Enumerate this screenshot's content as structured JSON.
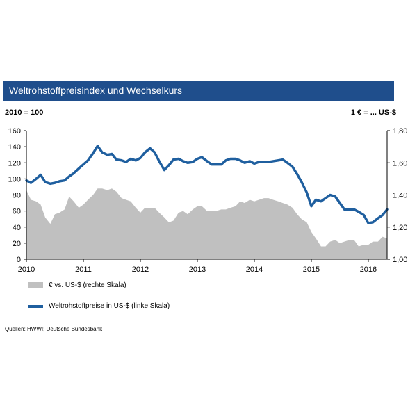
{
  "header": {
    "title": "Weltrohstoffpreisindex  und Wechselkurs",
    "left_unit": "2010 = 100",
    "right_unit": "1 € = ... US-$"
  },
  "legend": {
    "area_label": "€ vs. US-$ (rechte Skala)",
    "line_label": "Weltrohstoffpreise in US-$ (linke Skala)"
  },
  "source": "Quellen:  HWWI;  Deutsche  Bundesbank",
  "colors": {
    "title_bar": "#1f4e8c",
    "line": "#1f5f9f",
    "area": "#c0c0c0"
  },
  "chart_data": {
    "type": "line",
    "title": "Weltrohstoffpreisindex  und Wechselkurs",
    "x_ticks": [
      "2010",
      "2011",
      "2012",
      "2013",
      "2014",
      "2015",
      "2016"
    ],
    "y_left": {
      "label": "2010 = 100",
      "range": [
        0,
        160
      ],
      "ticks": [
        "0",
        "20",
        "40",
        "60",
        "80",
        "100",
        "120",
        "140",
        "160"
      ]
    },
    "y_right": {
      "label": "1 € = ... US-$",
      "range": [
        1.0,
        1.8
      ],
      "ticks": [
        "1,00",
        "1,20",
        "1,40",
        "1,60",
        "1,80"
      ]
    },
    "grid": false,
    "series": [
      {
        "name": "€ vs. US-$ (rechte Skala)",
        "type": "area",
        "axis": "right",
        "x": [
          2010.0,
          2010.08,
          2010.17,
          2010.25,
          2010.33,
          2010.42,
          2010.5,
          2010.58,
          2010.67,
          2010.75,
          2010.83,
          2010.92,
          2011.0,
          2011.08,
          2011.17,
          2011.25,
          2011.33,
          2011.42,
          2011.5,
          2011.58,
          2011.67,
          2011.75,
          2011.83,
          2011.92,
          2012.0,
          2012.08,
          2012.17,
          2012.25,
          2012.33,
          2012.42,
          2012.5,
          2012.58,
          2012.67,
          2012.75,
          2012.83,
          2012.92,
          2013.0,
          2013.08,
          2013.17,
          2013.25,
          2013.33,
          2013.42,
          2013.5,
          2013.58,
          2013.67,
          2013.75,
          2013.83,
          2013.92,
          2014.0,
          2014.08,
          2014.17,
          2014.25,
          2014.33,
          2014.42,
          2014.5,
          2014.58,
          2014.67,
          2014.75,
          2014.83,
          2014.92,
          2015.0,
          2015.08,
          2015.17,
          2015.25,
          2015.33,
          2015.42,
          2015.5,
          2015.58,
          2015.67,
          2015.75,
          2015.83,
          2015.92,
          2016.0,
          2016.08,
          2016.17,
          2016.25,
          2016.33
        ],
        "values": [
          1.43,
          1.37,
          1.36,
          1.34,
          1.26,
          1.22,
          1.28,
          1.29,
          1.31,
          1.39,
          1.36,
          1.32,
          1.34,
          1.37,
          1.4,
          1.44,
          1.44,
          1.43,
          1.44,
          1.42,
          1.38,
          1.37,
          1.36,
          1.32,
          1.29,
          1.32,
          1.32,
          1.32,
          1.29,
          1.26,
          1.23,
          1.24,
          1.29,
          1.3,
          1.28,
          1.31,
          1.33,
          1.33,
          1.3,
          1.3,
          1.3,
          1.31,
          1.31,
          1.32,
          1.33,
          1.36,
          1.35,
          1.37,
          1.36,
          1.37,
          1.38,
          1.38,
          1.37,
          1.36,
          1.35,
          1.34,
          1.32,
          1.28,
          1.25,
          1.23,
          1.17,
          1.13,
          1.08,
          1.08,
          1.11,
          1.12,
          1.1,
          1.11,
          1.12,
          1.12,
          1.08,
          1.09,
          1.09,
          1.11,
          1.11,
          1.14,
          1.13
        ]
      },
      {
        "name": "Weltrohstoffpreise in US-$ (linke Skala)",
        "type": "line",
        "axis": "left",
        "x": [
          2010.0,
          2010.08,
          2010.17,
          2010.25,
          2010.33,
          2010.42,
          2010.5,
          2010.58,
          2010.67,
          2010.75,
          2010.83,
          2010.92,
          2011.0,
          2011.08,
          2011.17,
          2011.25,
          2011.33,
          2011.42,
          2011.5,
          2011.58,
          2011.67,
          2011.75,
          2011.83,
          2011.92,
          2012.0,
          2012.08,
          2012.17,
          2012.25,
          2012.33,
          2012.42,
          2012.5,
          2012.58,
          2012.67,
          2012.75,
          2012.83,
          2012.92,
          2013.0,
          2013.08,
          2013.17,
          2013.25,
          2013.33,
          2013.42,
          2013.5,
          2013.58,
          2013.67,
          2013.75,
          2013.83,
          2013.92,
          2014.0,
          2014.08,
          2014.17,
          2014.25,
          2014.33,
          2014.42,
          2014.5,
          2014.58,
          2014.67,
          2014.75,
          2014.83,
          2014.92,
          2015.0,
          2015.08,
          2015.17,
          2015.25,
          2015.33,
          2015.42,
          2015.5,
          2015.58,
          2015.67,
          2015.75,
          2015.83,
          2015.92,
          2016.0,
          2016.08,
          2016.17,
          2016.25,
          2016.33
        ],
        "values": [
          98,
          95,
          100,
          105,
          96,
          94,
          95,
          97,
          98,
          103,
          107,
          113,
          118,
          123,
          132,
          141,
          133,
          130,
          131,
          124,
          123,
          121,
          125,
          123,
          126,
          133,
          138,
          133,
          122,
          111,
          117,
          124,
          125,
          122,
          120,
          121,
          125,
          127,
          122,
          118,
          118,
          118,
          123,
          125,
          125,
          123,
          120,
          122,
          119,
          121,
          121,
          121,
          122,
          123,
          124,
          120,
          115,
          106,
          96,
          83,
          66,
          74,
          72,
          76,
          80,
          78,
          70,
          62,
          62,
          62,
          59,
          55,
          45,
          46,
          51,
          55,
          62
        ]
      }
    ]
  }
}
